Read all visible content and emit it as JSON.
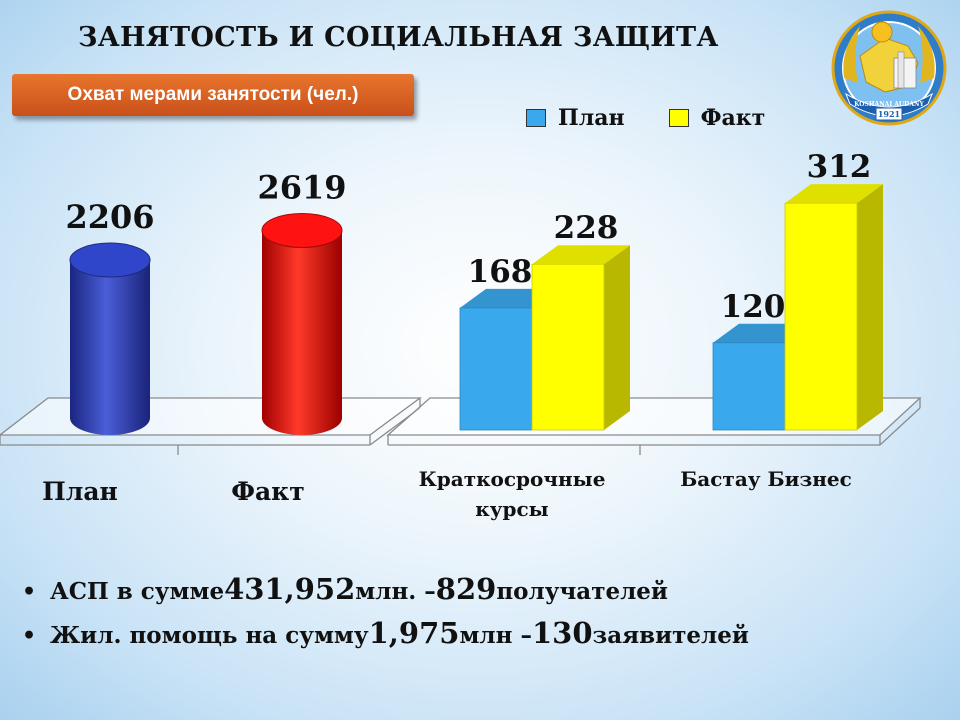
{
  "title": "ЗАНЯТОСТЬ И СОЦИАЛЬНАЯ ЗАЩИТА",
  "subtitle": "Охват мерами занятости (чел.)",
  "emblem": {
    "top_text": "1921",
    "band_text": "KOSHANAI AUDANY"
  },
  "legend": [
    {
      "name": "План",
      "color": "#3aa8ec"
    },
    {
      "name": "Факт",
      "color": "#ffff00"
    }
  ],
  "chart_data": [
    {
      "type": "bar",
      "style": "3d-cylinder",
      "categories": [
        "План",
        "Факт"
      ],
      "values": [
        2206,
        2619
      ],
      "colors": [
        "#2a3db0",
        "#e01010"
      ]
    },
    {
      "type": "bar",
      "style": "3d-box",
      "categories": [
        "Краткосрочные курсы",
        "Бастау Бизнес"
      ],
      "series": [
        {
          "name": "План",
          "values": [
            168,
            120
          ],
          "color": "#3aa8ec"
        },
        {
          "name": "Факт",
          "values": [
            228,
            312
          ],
          "color": "#ffff00"
        }
      ]
    }
  ],
  "bullets": [
    {
      "pre": "АСП в сумме ",
      "value": "431,952",
      "mid": " млн. – ",
      "count": "829",
      "post": " получателей"
    },
    {
      "pre": "Жил. помощь на сумму ",
      "value": "1,975",
      "mid": " млн  – ",
      "count": "130",
      "post": " заявителей"
    }
  ]
}
